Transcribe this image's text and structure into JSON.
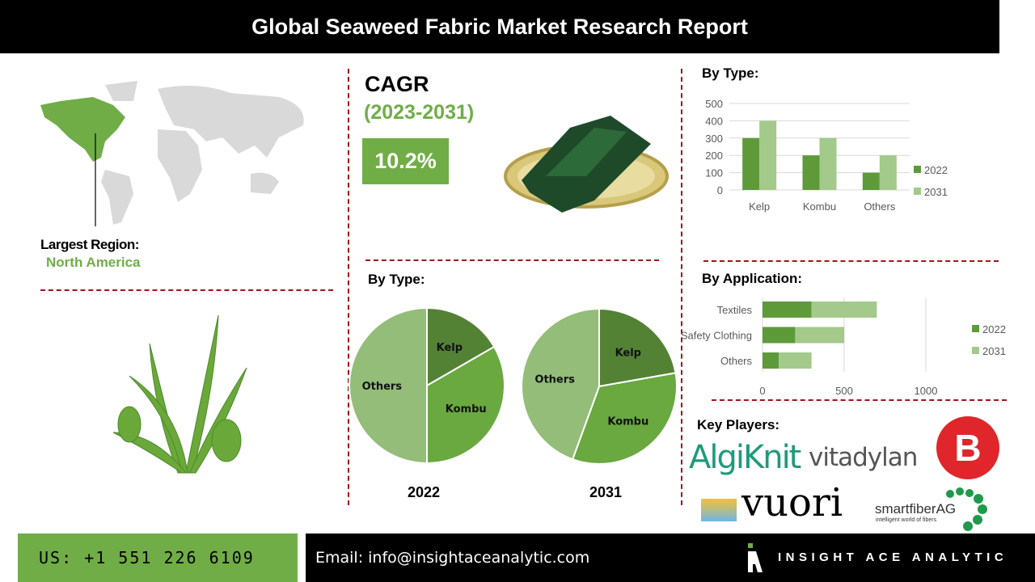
{
  "title": "Global Seaweed Fabric Market Research Report",
  "region": {
    "label": "Largest Region:",
    "value": "North America"
  },
  "cagr": {
    "label": "CAGR",
    "period": "(2023-2031)",
    "value": "10.2%"
  },
  "colors": {
    "dark_green": "#5e9a3a",
    "light_green": "#a3c98b",
    "accent_red": "#a0151a",
    "brand_green": "#70ad47"
  },
  "pies_title": "By Type:",
  "bar_title": "By Type:",
  "hbar_title": "By Application:",
  "key_players": {
    "label": "Key Players:",
    "logos": [
      "AlgiKnit",
      "vitadylan",
      "vuori",
      "smartfiberAG",
      "intelligent world of fibers"
    ]
  },
  "footer": {
    "phone": "US: +1 551 226 6109",
    "email": "Email: info@insightaceanalytic.com",
    "brand": "INSIGHT ACE ANALYTIC"
  },
  "chart_data": [
    {
      "type": "bar",
      "title": "By Type:",
      "categories": [
        "Kelp",
        "Kombu",
        "Others"
      ],
      "series": [
        {
          "name": "2022",
          "values": [
            300,
            200,
            100
          ]
        },
        {
          "name": "2031",
          "values": [
            400,
            300,
            200
          ]
        }
      ],
      "yticks": [
        "0",
        "100",
        "200",
        "300",
        "400",
        "500"
      ],
      "ylim": [
        0,
        500
      ],
      "grid": true,
      "legend": "right"
    },
    {
      "type": "bar",
      "orientation": "horizontal",
      "stacked": true,
      "title": "By Application:",
      "categories": [
        "Textiles",
        "Safety Clothing",
        "Others"
      ],
      "series": [
        {
          "name": "2022",
          "values": [
            300,
            200,
            100
          ]
        },
        {
          "name": "2031",
          "values": [
            400,
            300,
            200
          ]
        }
      ],
      "xticks": [
        "0",
        "500",
        "1000"
      ],
      "xlim": [
        0,
        1000
      ],
      "grid": true,
      "legend": "right"
    },
    {
      "type": "pie",
      "title": "2022",
      "labels": [
        "Kelp",
        "Kombu",
        "Others"
      ],
      "values": [
        100,
        200,
        300
      ]
    },
    {
      "type": "pie",
      "title": "2031",
      "labels": [
        "Kelp",
        "Kombu",
        "Others"
      ],
      "values": [
        200,
        300,
        400
      ]
    }
  ]
}
